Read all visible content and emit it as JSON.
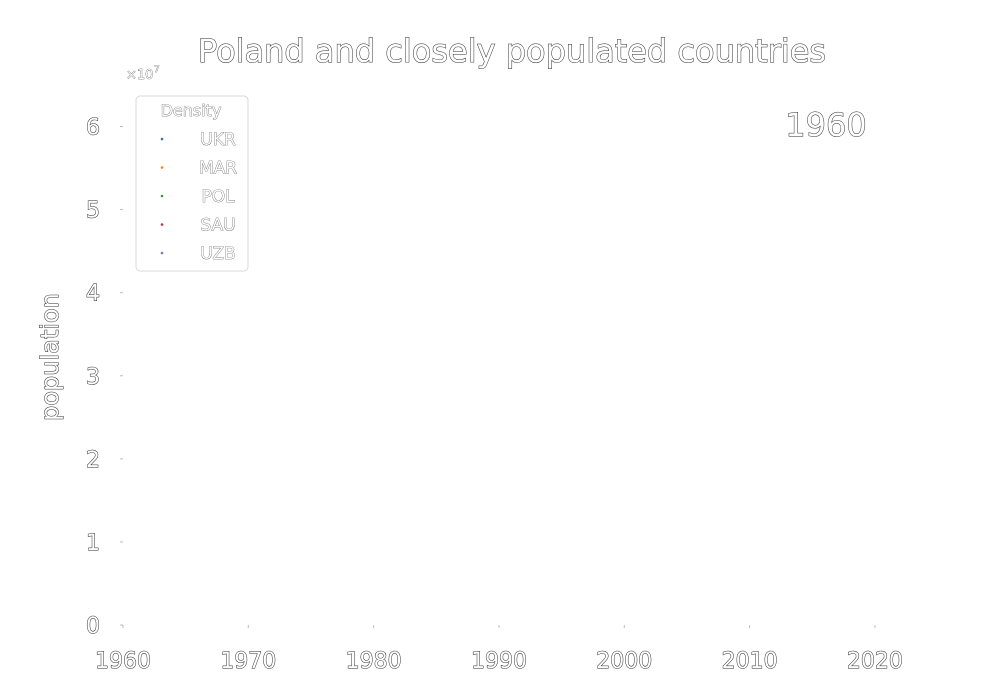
{
  "chart_data": {
    "type": "scatter",
    "title": "Poland and closely populated countries",
    "xlabel": "",
    "ylabel": "population",
    "offset_label": "×10",
    "offset_exponent": "7",
    "year_label": "1960",
    "xlim": [
      1960,
      2022
    ],
    "ylim": [
      0,
      6.5
    ],
    "x_ticks": [
      "1960",
      "1970",
      "1980",
      "1990",
      "2000",
      "2010",
      "2020"
    ],
    "y_ticks": [
      "0",
      "1",
      "2",
      "3",
      "4",
      "5",
      "6"
    ],
    "grid": false,
    "legend": {
      "title": "Density",
      "position": "upper-left",
      "entries": [
        {
          "label": "UKR",
          "color": "#1f77b4"
        },
        {
          "label": "MAR",
          "color": "#ff7f0e"
        },
        {
          "label": "POL",
          "color": "#2ca02c"
        },
        {
          "label": "SAU",
          "color": "#d62728"
        },
        {
          "label": "UZB",
          "color": "#9467bd"
        }
      ]
    },
    "series": []
  }
}
